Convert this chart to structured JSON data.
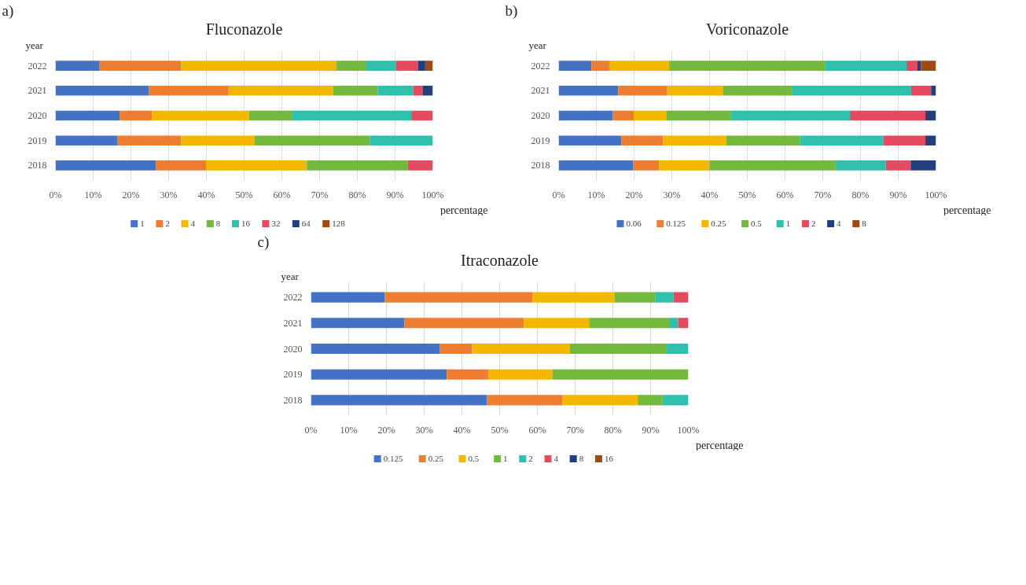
{
  "chart_data": [
    {
      "type": "bar",
      "orientation": "horizontal",
      "stacked": true,
      "title": "Fluconazole",
      "ylabel": "year",
      "xlabel": "percentage",
      "annotations": [
        "a)"
      ],
      "categories": [
        "2022",
        "2021",
        "2020",
        "2019",
        "2018"
      ],
      "series": [
        {
          "name": "1",
          "color": "#4472c4",
          "values": [
            11.7,
            24.8,
            17.0,
            16.5,
            26.6
          ]
        },
        {
          "name": "2",
          "color": "#ed7d31",
          "values": [
            21.6,
            21.1,
            8.6,
            16.8,
            13.3
          ]
        },
        {
          "name": "4",
          "color": "#f2b800",
          "values": [
            41.2,
            27.7,
            25.7,
            19.4,
            26.7
          ]
        },
        {
          "name": "8",
          "color": "#75b83f",
          "values": [
            7.9,
            11.8,
            11.5,
            30.6,
            26.8
          ]
        },
        {
          "name": "16",
          "color": "#2ebfad",
          "values": [
            7.9,
            9.4,
            31.5,
            16.7,
            null
          ]
        },
        {
          "name": "32",
          "color": "#e64a5e",
          "values": [
            5.8,
            2.6,
            5.7,
            null,
            6.6
          ]
        },
        {
          "name": "64",
          "color": "#203f7c",
          "values": [
            1.9,
            2.6,
            null,
            null,
            null
          ]
        },
        {
          "name": "128",
          "color": "#9e4a10",
          "values": [
            2.0,
            null,
            null,
            null,
            null
          ]
        }
      ],
      "xlim": [
        0,
        100
      ],
      "xticks": [
        {
          "value": 0,
          "label": "0%"
        },
        {
          "value": 10,
          "label": "10%"
        },
        {
          "value": 20,
          "label": "20%"
        },
        {
          "value": 30,
          "label": "30%"
        },
        {
          "value": 40,
          "label": "40%"
        },
        {
          "value": 50,
          "label": "50%"
        },
        {
          "value": 60,
          "label": "60%"
        },
        {
          "value": 70,
          "label": "70%"
        },
        {
          "value": 80,
          "label": "80%"
        },
        {
          "value": 90,
          "label": "90%"
        },
        {
          "value": 100,
          "label": "100%"
        }
      ],
      "grid": "x",
      "legend": "bottom"
    },
    {
      "type": "bar",
      "orientation": "horizontal",
      "stacked": true,
      "title": "Voriconazole",
      "ylabel": "year",
      "xlabel": "percentage",
      "annotations": [
        "b)"
      ],
      "categories": [
        "2022",
        "2021",
        "2020",
        "2019",
        "2018"
      ],
      "series": [
        {
          "name": "0.06",
          "color": "#4472c4",
          "values": [
            8.7,
            15.8,
            14.3,
            16.6,
            19.8
          ]
        },
        {
          "name": "0.125",
          "color": "#ed7d31",
          "values": [
            4.9,
            13.0,
            5.6,
            11.1,
            6.8
          ]
        },
        {
          "name": "0.25",
          "color": "#f2b800",
          "values": [
            15.7,
            14.7,
            8.6,
            16.7,
            13.4
          ]
        },
        {
          "name": "0.5",
          "color": "#75b83f",
          "values": [
            41.4,
            18.3,
            17.2,
            19.5,
            33.4
          ]
        },
        {
          "name": "1",
          "color": "#2ebfad",
          "values": [
            21.5,
            31.6,
            31.5,
            22.2,
            13.3
          ]
        },
        {
          "name": "2",
          "color": "#e64a5e",
          "values": [
            2.9,
            5.3,
            20.0,
            11.1,
            6.6
          ]
        },
        {
          "name": "4",
          "color": "#203f7c",
          "values": [
            0.9,
            1.3,
            2.8,
            2.8,
            6.7
          ]
        },
        {
          "name": "8",
          "color": "#9e4a10",
          "values": [
            4.0,
            null,
            null,
            null,
            null
          ]
        }
      ],
      "xlim": [
        0,
        100
      ],
      "xticks": [
        {
          "value": 0,
          "label": "0%"
        },
        {
          "value": 10,
          "label": "10%"
        },
        {
          "value": 20,
          "label": "20%"
        },
        {
          "value": 30,
          "label": "30%"
        },
        {
          "value": 40,
          "label": "40%"
        },
        {
          "value": 50,
          "label": "50%"
        },
        {
          "value": 60,
          "label": "60%"
        },
        {
          "value": 70,
          "label": "70%"
        },
        {
          "value": 80,
          "label": "80%"
        },
        {
          "value": 90,
          "label": "90%"
        },
        {
          "value": 100,
          "label": "100%"
        }
      ],
      "grid": "x",
      "legend": "bottom"
    },
    {
      "type": "bar",
      "orientation": "horizontal",
      "stacked": true,
      "title": "Itraconazole",
      "ylabel": "year",
      "xlabel": "percentage",
      "annotations": [
        "c)"
      ],
      "categories": [
        "2022",
        "2021",
        "2020",
        "2019",
        "2018"
      ],
      "series": [
        {
          "name": "0.125",
          "color": "#4472c4",
          "values": [
            19.5,
            24.8,
            34.2,
            36.0,
            46.6
          ]
        },
        {
          "name": "0.25",
          "color": "#ed7d31",
          "values": [
            39.3,
            31.6,
            8.5,
            11.1,
            20.1
          ]
        },
        {
          "name": "0.5",
          "color": "#f2b800",
          "values": [
            21.6,
            17.3,
            25.9,
            16.9,
            19.9
          ]
        },
        {
          "name": "1",
          "color": "#75b83f",
          "values": [
            10.8,
            21.2,
            25.7,
            36.0,
            6.6
          ]
        },
        {
          "name": "2",
          "color": "#2ebfad",
          "values": [
            4.9,
            2.4,
            5.7,
            null,
            6.8
          ]
        },
        {
          "name": "4",
          "color": "#e64a5e",
          "values": [
            3.9,
            2.7,
            null,
            null,
            null
          ]
        },
        {
          "name": "8",
          "color": "#203f7c",
          "values": [
            null,
            null,
            null,
            null,
            null
          ]
        },
        {
          "name": "16",
          "color": "#9e4a10",
          "values": [
            null,
            null,
            null,
            null,
            null
          ]
        }
      ],
      "xlim": [
        0,
        100
      ],
      "xticks": [
        {
          "value": 0,
          "label": "0%"
        },
        {
          "value": 10,
          "label": "10%"
        },
        {
          "value": 20,
          "label": "20%"
        },
        {
          "value": 30,
          "label": "30%"
        },
        {
          "value": 40,
          "label": "40%"
        },
        {
          "value": 50,
          "label": "50%"
        },
        {
          "value": 60,
          "label": "60%"
        },
        {
          "value": 70,
          "label": "70%"
        },
        {
          "value": 80,
          "label": "80%"
        },
        {
          "value": 90,
          "label": "90%"
        },
        {
          "value": 100,
          "label": "100%"
        }
      ],
      "grid": "x",
      "legend": "bottom"
    }
  ]
}
